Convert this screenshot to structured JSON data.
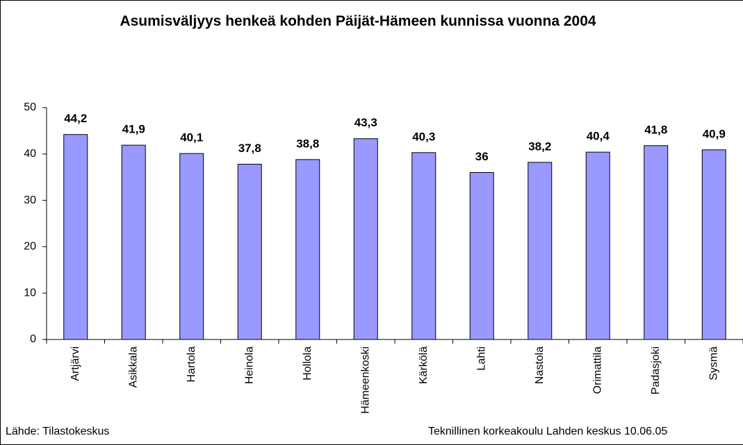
{
  "chart_data": {
    "type": "bar",
    "title": "Asumisväljyys henkeä kohden Päijät-Hämeen kunnissa vuonna 2004",
    "categories": [
      "Artjärvi",
      "Asikkala",
      "Hartola",
      "Heinola",
      "Hollola",
      "Hämeenkoski",
      "Kärkölä",
      "Lahti",
      "Nastola",
      "Orimattila",
      "Padasjoki",
      "Sysmä"
    ],
    "values": [
      44.2,
      41.9,
      40.1,
      37.8,
      38.8,
      43.3,
      40.3,
      36,
      38.2,
      40.4,
      41.8,
      40.9
    ],
    "value_labels": [
      "44,2",
      "41,9",
      "40,1",
      "37,8",
      "38,8",
      "43,3",
      "40,3",
      "36",
      "38,2",
      "40,4",
      "41,8",
      "40,9"
    ],
    "color": "#9999ff",
    "ylim": [
      0,
      50
    ],
    "yticks": [
      0,
      10,
      20,
      30,
      40,
      50
    ],
    "grid": false,
    "annotations": [
      "Lähde: Tilastokeskus",
      "Teknillinen korkeakoulu Lahden keskus 10.06.05"
    ]
  }
}
